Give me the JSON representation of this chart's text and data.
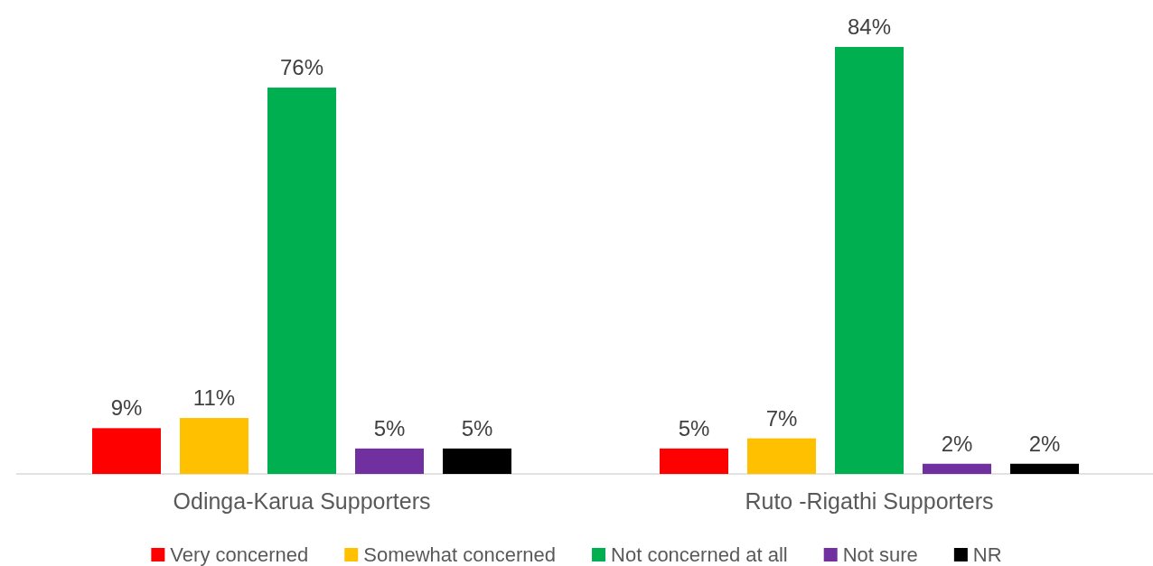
{
  "chart_data": {
    "type": "bar",
    "categories": [
      "Odinga-Karua Supporters",
      "Ruto -Rigathi Supporters"
    ],
    "series": [
      {
        "name": "Very concerned",
        "color": "#ff0000",
        "values": [
          9,
          5
        ],
        "value_labels": [
          "9%",
          "5%"
        ]
      },
      {
        "name": "Somewhat concerned",
        "color": "#ffc000",
        "values": [
          11,
          7
        ],
        "value_labels": [
          "11%",
          "7%"
        ]
      },
      {
        "name": "Not concerned at all",
        "color": "#00b050",
        "values": [
          76,
          84
        ],
        "value_labels": [
          "76%",
          "84%"
        ]
      },
      {
        "name": "Not sure",
        "color": "#7030a0",
        "values": [
          5,
          2
        ],
        "value_labels": [
          "5%",
          "2%"
        ]
      },
      {
        "name": "NR",
        "color": "#000000",
        "values": [
          5,
          2
        ],
        "value_labels": [
          "5%",
          "2%"
        ]
      }
    ],
    "legend": "bottom"
  }
}
